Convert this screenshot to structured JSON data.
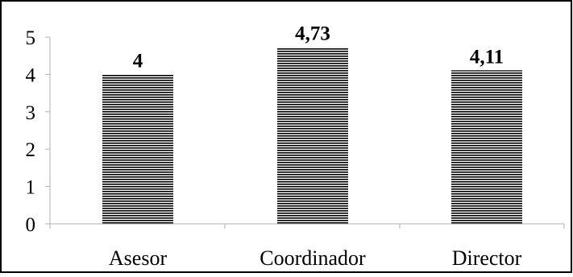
{
  "chart_data": {
    "type": "bar",
    "title": "",
    "xlabel": "",
    "ylabel": "",
    "categories": [
      "Asesor",
      "Coordinador",
      "Director"
    ],
    "values": [
      4,
      4.73,
      4.11
    ],
    "value_labels": [
      "4",
      "4,73",
      "4,11"
    ],
    "yticks": [
      "0",
      "1",
      "2",
      "3",
      "4",
      "5"
    ],
    "ylim": [
      0,
      5
    ],
    "grid": false,
    "legend": "none",
    "bar_fill": "horizontal-stripes",
    "colors": {
      "stripe": "#000000",
      "background": "#ffffff",
      "frame": "#000000"
    }
  }
}
